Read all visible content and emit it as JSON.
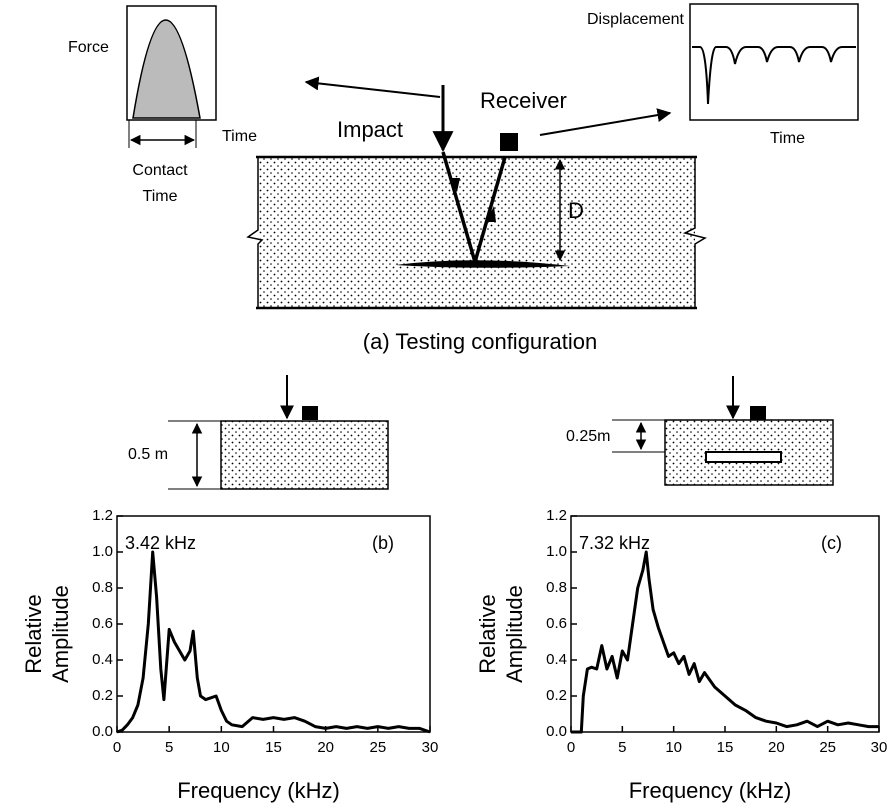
{
  "diagram": {
    "force_label": "Force",
    "force_time_label": "Time",
    "contact_time_label": [
      "Contact",
      "Time"
    ],
    "impact_label": "Impact",
    "receiver_label": "Receiver",
    "displacement_label": "Displacement",
    "displacement_time_label": "Time",
    "depth_label": "D",
    "caption": "(a) Testing configuration"
  },
  "specimen_b": {
    "depth_label": "0.5 m"
  },
  "specimen_c": {
    "depth_label": "0.25m"
  },
  "chart_data": [
    {
      "type": "line",
      "panel_label": "(b)",
      "peak_label": "3.42 kHz",
      "xlabel": "Frequency (kHz)",
      "ylabel": [
        "Relative",
        "Amplitude"
      ],
      "color": "#000000",
      "x": [
        0,
        0.5,
        1,
        1.5,
        2,
        2.5,
        3,
        3.42,
        3.8,
        4.2,
        4.5,
        5,
        5.5,
        6,
        6.5,
        7,
        7.3,
        7.7,
        8,
        8.5,
        9,
        9.5,
        10,
        10.5,
        11,
        12,
        13,
        14,
        15,
        16,
        17,
        18,
        19,
        20,
        21,
        22,
        23,
        24,
        25,
        26,
        27,
        28,
        29,
        30
      ],
      "values": [
        0,
        0.01,
        0.04,
        0.08,
        0.15,
        0.3,
        0.6,
        1.0,
        0.75,
        0.35,
        0.18,
        0.57,
        0.5,
        0.45,
        0.4,
        0.45,
        0.56,
        0.3,
        0.2,
        0.18,
        0.19,
        0.2,
        0.12,
        0.06,
        0.04,
        0.03,
        0.08,
        0.07,
        0.08,
        0.07,
        0.08,
        0.06,
        0.03,
        0.02,
        0.03,
        0.02,
        0.03,
        0.02,
        0.03,
        0.02,
        0.03,
        0.02,
        0.02,
        0
      ],
      "xlim": [
        0,
        30
      ],
      "xticks": [
        0,
        5,
        10,
        15,
        20,
        25,
        30
      ],
      "ylim": [
        0,
        1.2
      ],
      "yticks": [
        {
          "value": 0,
          "label": "0.0"
        },
        0.2,
        0.4,
        0.6,
        0.8,
        {
          "value": 1,
          "label": "1.0"
        },
        1.2
      ]
    },
    {
      "type": "line",
      "panel_label": "(c)",
      "peak_label": "7.32 kHz",
      "xlabel": "Frequency (kHz)",
      "ylabel": [
        "Relative",
        "Amplitude"
      ],
      "color": "#000000",
      "x": [
        0,
        1,
        1.2,
        1.6,
        2,
        2.5,
        3,
        3.5,
        4,
        4.5,
        5,
        5.5,
        6,
        6.5,
        7,
        7.32,
        7.6,
        8,
        8.5,
        9,
        9.5,
        10,
        10.5,
        11,
        11.5,
        12,
        12.5,
        13,
        14,
        15,
        16,
        17,
        18,
        19,
        20,
        21,
        22,
        23,
        24,
        25,
        26,
        27,
        28,
        29,
        30
      ],
      "values": [
        0,
        0,
        0.2,
        0.35,
        0.36,
        0.35,
        0.48,
        0.35,
        0.42,
        0.3,
        0.45,
        0.4,
        0.6,
        0.8,
        0.9,
        1.0,
        0.85,
        0.68,
        0.58,
        0.5,
        0.42,
        0.44,
        0.38,
        0.42,
        0.32,
        0.38,
        0.28,
        0.33,
        0.25,
        0.2,
        0.15,
        0.12,
        0.08,
        0.06,
        0.05,
        0.03,
        0.04,
        0.06,
        0.03,
        0.06,
        0.04,
        0.05,
        0.04,
        0.03,
        0.03
      ],
      "xlim": [
        0,
        30
      ],
      "xticks": [
        0,
        5,
        10,
        15,
        20,
        25,
        30
      ],
      "ylim": [
        0,
        1.2
      ],
      "yticks": [
        {
          "value": 0,
          "label": "0.0"
        },
        0.2,
        0.4,
        0.6,
        0.8,
        {
          "value": 1,
          "label": "1.0"
        },
        1.2
      ]
    }
  ]
}
